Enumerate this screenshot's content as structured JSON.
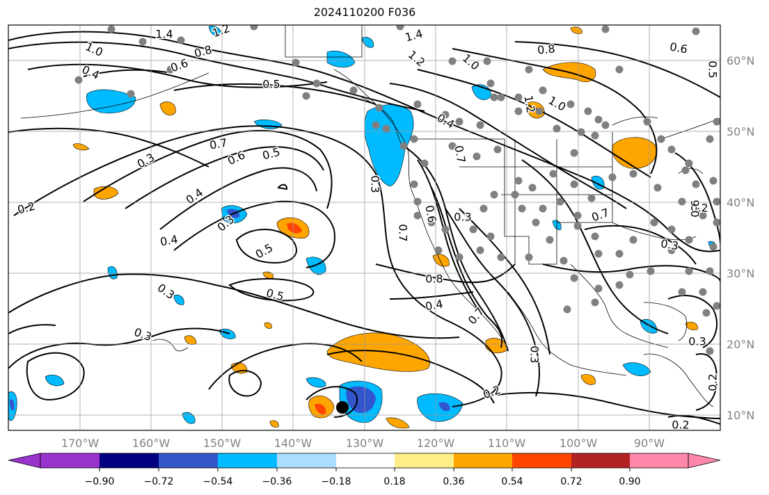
{
  "title": "2024110200 F036",
  "map": {
    "lon_labels": [
      "170°W",
      "160°W",
      "150°W",
      "140°W",
      "130°W",
      "120°W",
      "110°W",
      "100°W",
      "90°W"
    ],
    "lat_labels": [
      "60°N",
      "50°N",
      "40°N",
      "30°N",
      "20°N",
      "10°N"
    ],
    "contour_labels": [
      "1.4",
      "1.2",
      "1.0",
      "0.8",
      "0.6",
      "0.4",
      "0.5",
      "1.4",
      "1.2",
      "1.0",
      "0.8",
      "0.6",
      "1.2",
      "1.0",
      "0.4",
      "0.7",
      "0.6",
      "0.5",
      "0.3",
      "0.4",
      "0.2",
      "0.3",
      "0.4",
      "0.5",
      "0.3",
      "0.5",
      "0.3",
      "0.3",
      "0.7",
      "0.3",
      "0.6",
      "0.7",
      "0.8",
      "0.4",
      "0.7",
      "0.3",
      "0.2",
      "0.2",
      "0.3",
      "0.3",
      "0.2",
      "0.7",
      "0.2",
      "0.5",
      "0.6"
    ]
  },
  "colorbar": {
    "ticks": [
      "−0.90",
      "−0.72",
      "−0.54",
      "−0.36",
      "−0.18",
      "0.18",
      "0.36",
      "0.54",
      "0.72",
      "0.90"
    ],
    "colors": {
      "lt_-0.90": "#9933cc",
      "-0.90_-0.72": "#000080",
      "-0.72_-0.54": "#3355cc",
      "-0.54_-0.36": "#00bbff",
      "-0.36_-0.18": "#aaddff",
      "-0.18_0.18": "#ffffff",
      "0.18_0.36": "#ffee88",
      "0.36_0.54": "#ffa500",
      "0.54_0.72": "#ff4500",
      "0.72_0.90": "#b22222",
      "gt_0.90": "#ff88aa"
    }
  },
  "markers": {
    "gray_dot_color": "#808080",
    "black_dot_color": "#000000"
  }
}
